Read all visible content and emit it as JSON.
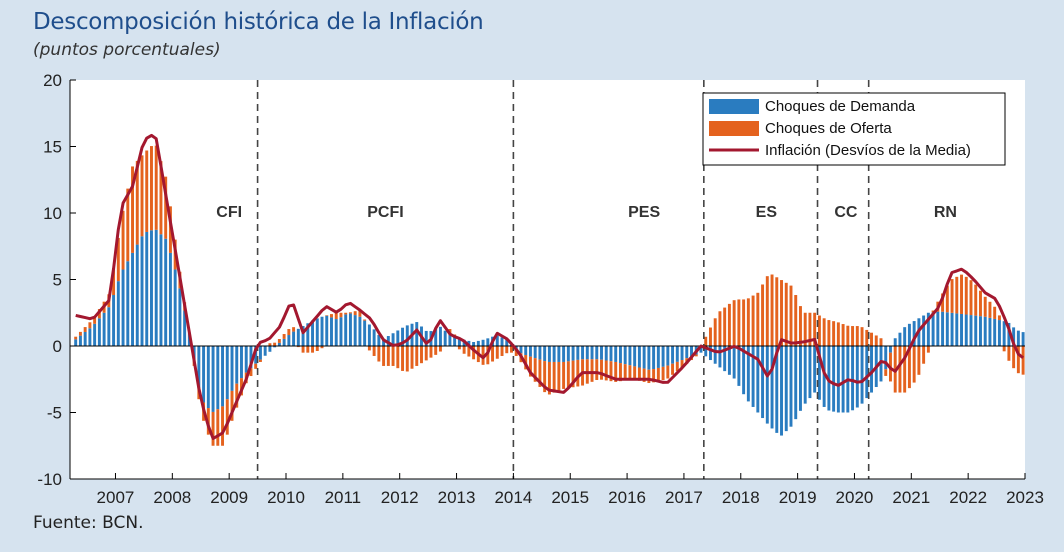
{
  "header": {
    "title": "Descomposición histórica de la Inflación",
    "subtitle": "(puntos porcentuales)",
    "source": "Fuente: BCN."
  },
  "colors": {
    "background": "#d6e3ef",
    "plot_background": "#ffffff",
    "demand": "#2a7cc0",
    "supply": "#e4621e",
    "inflation": "#a3182f",
    "title": "#1f4e8c"
  },
  "chart_data": {
    "type": "bar",
    "stacked": true,
    "title": "Descomposición histórica de la Inflación",
    "subtitle": "(puntos porcentuales)",
    "xlabel": "",
    "ylabel": "",
    "ylim": [
      -10,
      20
    ],
    "yticks": [
      -10,
      -5,
      0,
      5,
      10,
      15,
      20
    ],
    "xlim": [
      2006.2,
      2023.0
    ],
    "xticks": [
      {
        "value": 2007.0,
        "label": "2007"
      },
      {
        "value": 2008.0,
        "label": "2008"
      },
      {
        "value": 2009.0,
        "label": "2009"
      },
      {
        "value": 2010.0,
        "label": "2010"
      },
      {
        "value": 2011.0,
        "label": "2011"
      },
      {
        "value": 2012.0,
        "label": "2012"
      },
      {
        "value": 2013.0,
        "label": "2013"
      },
      {
        "value": 2014.0,
        "label": "2014"
      },
      {
        "value": 2015.0,
        "label": "2015"
      },
      {
        "value": 2016.0,
        "label": "2016"
      },
      {
        "value": 2017.0,
        "label": "2017"
      },
      {
        "value": 2018.0,
        "label": "2018"
      },
      {
        "value": 2019.0,
        "label": "2019"
      },
      {
        "value": 2020.0,
        "label": "2020"
      },
      {
        "value": 2021.0,
        "label": "2021"
      },
      {
        "value": 2022.0,
        "label": "2022"
      },
      {
        "value": 2023.0,
        "label": "2023"
      }
    ],
    "grid": false,
    "legend_position": "top-right",
    "period_dividers": [
      2009.5,
      2014.0,
      2017.35,
      2019.35,
      2020.25
    ],
    "period_labels": [
      {
        "label": "CFI",
        "x": 2009.0
      },
      {
        "label": "PCFI",
        "x": 2011.75
      },
      {
        "label": "PES",
        "x": 2016.3
      },
      {
        "label": "ES",
        "x": 2018.45
      },
      {
        "label": "CC",
        "x": 2019.85
      },
      {
        "label": "RN",
        "x": 2021.6
      }
    ],
    "x_knots": [
      2006.3,
      2006.6,
      2006.9,
      2007.1,
      2007.3,
      2007.5,
      2007.7,
      2007.9,
      2008.1,
      2008.3,
      2008.5,
      2008.7,
      2008.9,
      2009.1,
      2009.3,
      2009.5,
      2009.7,
      2009.9,
      2010.1,
      2010.3,
      2010.5,
      2010.7,
      2010.9,
      2011.1,
      2011.3,
      2011.5,
      2011.7,
      2011.9,
      2012.1,
      2012.3,
      2012.5,
      2012.7,
      2012.9,
      2013.1,
      2013.3,
      2013.5,
      2013.7,
      2013.9,
      2014.1,
      2014.3,
      2014.6,
      2014.9,
      2015.2,
      2015.5,
      2015.8,
      2016.1,
      2016.4,
      2016.7,
      2017.0,
      2017.3,
      2017.6,
      2017.9,
      2018.1,
      2018.3,
      2018.5,
      2018.7,
      2018.9,
      2019.1,
      2019.3,
      2019.5,
      2019.7,
      2019.9,
      2020.1,
      2020.3,
      2020.5,
      2020.7,
      2020.9,
      2021.1,
      2021.3,
      2021.5,
      2021.7,
      2021.9,
      2022.1,
      2022.3,
      2022.5,
      2022.7,
      2022.85,
      2023.0
    ],
    "series": [
      {
        "name": "Choques de Demanda",
        "kind": "bar",
        "values": [
          0.5,
          1.5,
          3.0,
          5.5,
          7.0,
          8.5,
          8.8,
          8.0,
          5.0,
          1.0,
          -4.0,
          -5.0,
          -4.5,
          -3.0,
          -2.0,
          -1.2,
          -0.5,
          0.3,
          1.0,
          1.5,
          2.0,
          2.3,
          2.0,
          2.5,
          2.2,
          1.5,
          0.5,
          1.0,
          1.5,
          1.8,
          1.0,
          1.5,
          0.8,
          0.5,
          0.3,
          0.5,
          0.8,
          0.5,
          -0.5,
          -0.8,
          -1.2,
          -1.2,
          -1.0,
          -1.0,
          -1.2,
          -1.5,
          -1.8,
          -1.5,
          -1.0,
          -0.5,
          -1.5,
          -2.5,
          -4.0,
          -5.0,
          -6.0,
          -6.8,
          -6.0,
          -4.5,
          -3.5,
          -4.8,
          -5.0,
          -5.0,
          -4.5,
          -3.5,
          -2.5,
          0.5,
          1.5,
          2.0,
          2.5,
          2.6,
          2.5,
          2.4,
          2.3,
          2.2,
          2.0,
          1.8,
          1.2,
          1.0
        ]
      },
      {
        "name": "Choques de Oferta",
        "kind": "bar",
        "values": [
          0.2,
          0.5,
          1.0,
          4.0,
          6.5,
          6.0,
          6.5,
          4.5,
          1.5,
          0.0,
          -1.0,
          -2.5,
          -3.0,
          -2.0,
          -0.8,
          -0.3,
          0.2,
          0.3,
          0.5,
          -0.5,
          -0.5,
          0.0,
          0.5,
          0.0,
          0.5,
          -0.5,
          -1.5,
          -1.5,
          -2.0,
          -1.5,
          -1.0,
          -0.5,
          0.5,
          -0.5,
          -1.0,
          -1.5,
          -1.0,
          -0.5,
          -0.5,
          -1.5,
          -2.5,
          -2.0,
          -2.0,
          -1.5,
          -1.5,
          -1.0,
          -1.0,
          -1.0,
          -0.5,
          0.0,
          2.5,
          3.5,
          3.5,
          4.0,
          5.5,
          5.0,
          4.5,
          2.5,
          2.5,
          2.0,
          1.8,
          1.5,
          1.5,
          1.0,
          0.5,
          -3.5,
          -3.5,
          -2.5,
          -0.5,
          1.0,
          2.5,
          3.0,
          2.5,
          1.5,
          0.8,
          -1.0,
          -2.0,
          -2.2
        ]
      },
      {
        "name": "Inflación (Desvíos de la Media)",
        "kind": "line",
        "values": [
          2.3,
          2.0,
          3.5,
          10.5,
          12.0,
          15.5,
          16.0,
          11.0,
          6.0,
          1.0,
          -4.0,
          -7.0,
          -6.5,
          -4.5,
          -2.5,
          0.2,
          0.5,
          1.5,
          3.5,
          1.0,
          2.0,
          3.0,
          2.5,
          3.3,
          2.7,
          2.0,
          0.5,
          0.0,
          0.3,
          1.2,
          0.0,
          2.0,
          0.8,
          0.5,
          -0.3,
          -1.0,
          1.0,
          0.5,
          -0.5,
          -2.0,
          -3.3,
          -3.5,
          -2.0,
          -2.0,
          -2.5,
          -2.5,
          -2.5,
          -2.8,
          -1.5,
          0.0,
          -0.5,
          0.0,
          -0.5,
          -1.0,
          -2.5,
          0.5,
          0.2,
          0.3,
          0.5,
          -2.5,
          -3.0,
          -2.5,
          -2.8,
          -2.0,
          -1.0,
          -2.0,
          -0.8,
          1.0,
          2.0,
          3.0,
          5.5,
          5.8,
          5.0,
          4.0,
          3.5,
          1.5,
          -0.5,
          -1.0
        ]
      }
    ]
  }
}
